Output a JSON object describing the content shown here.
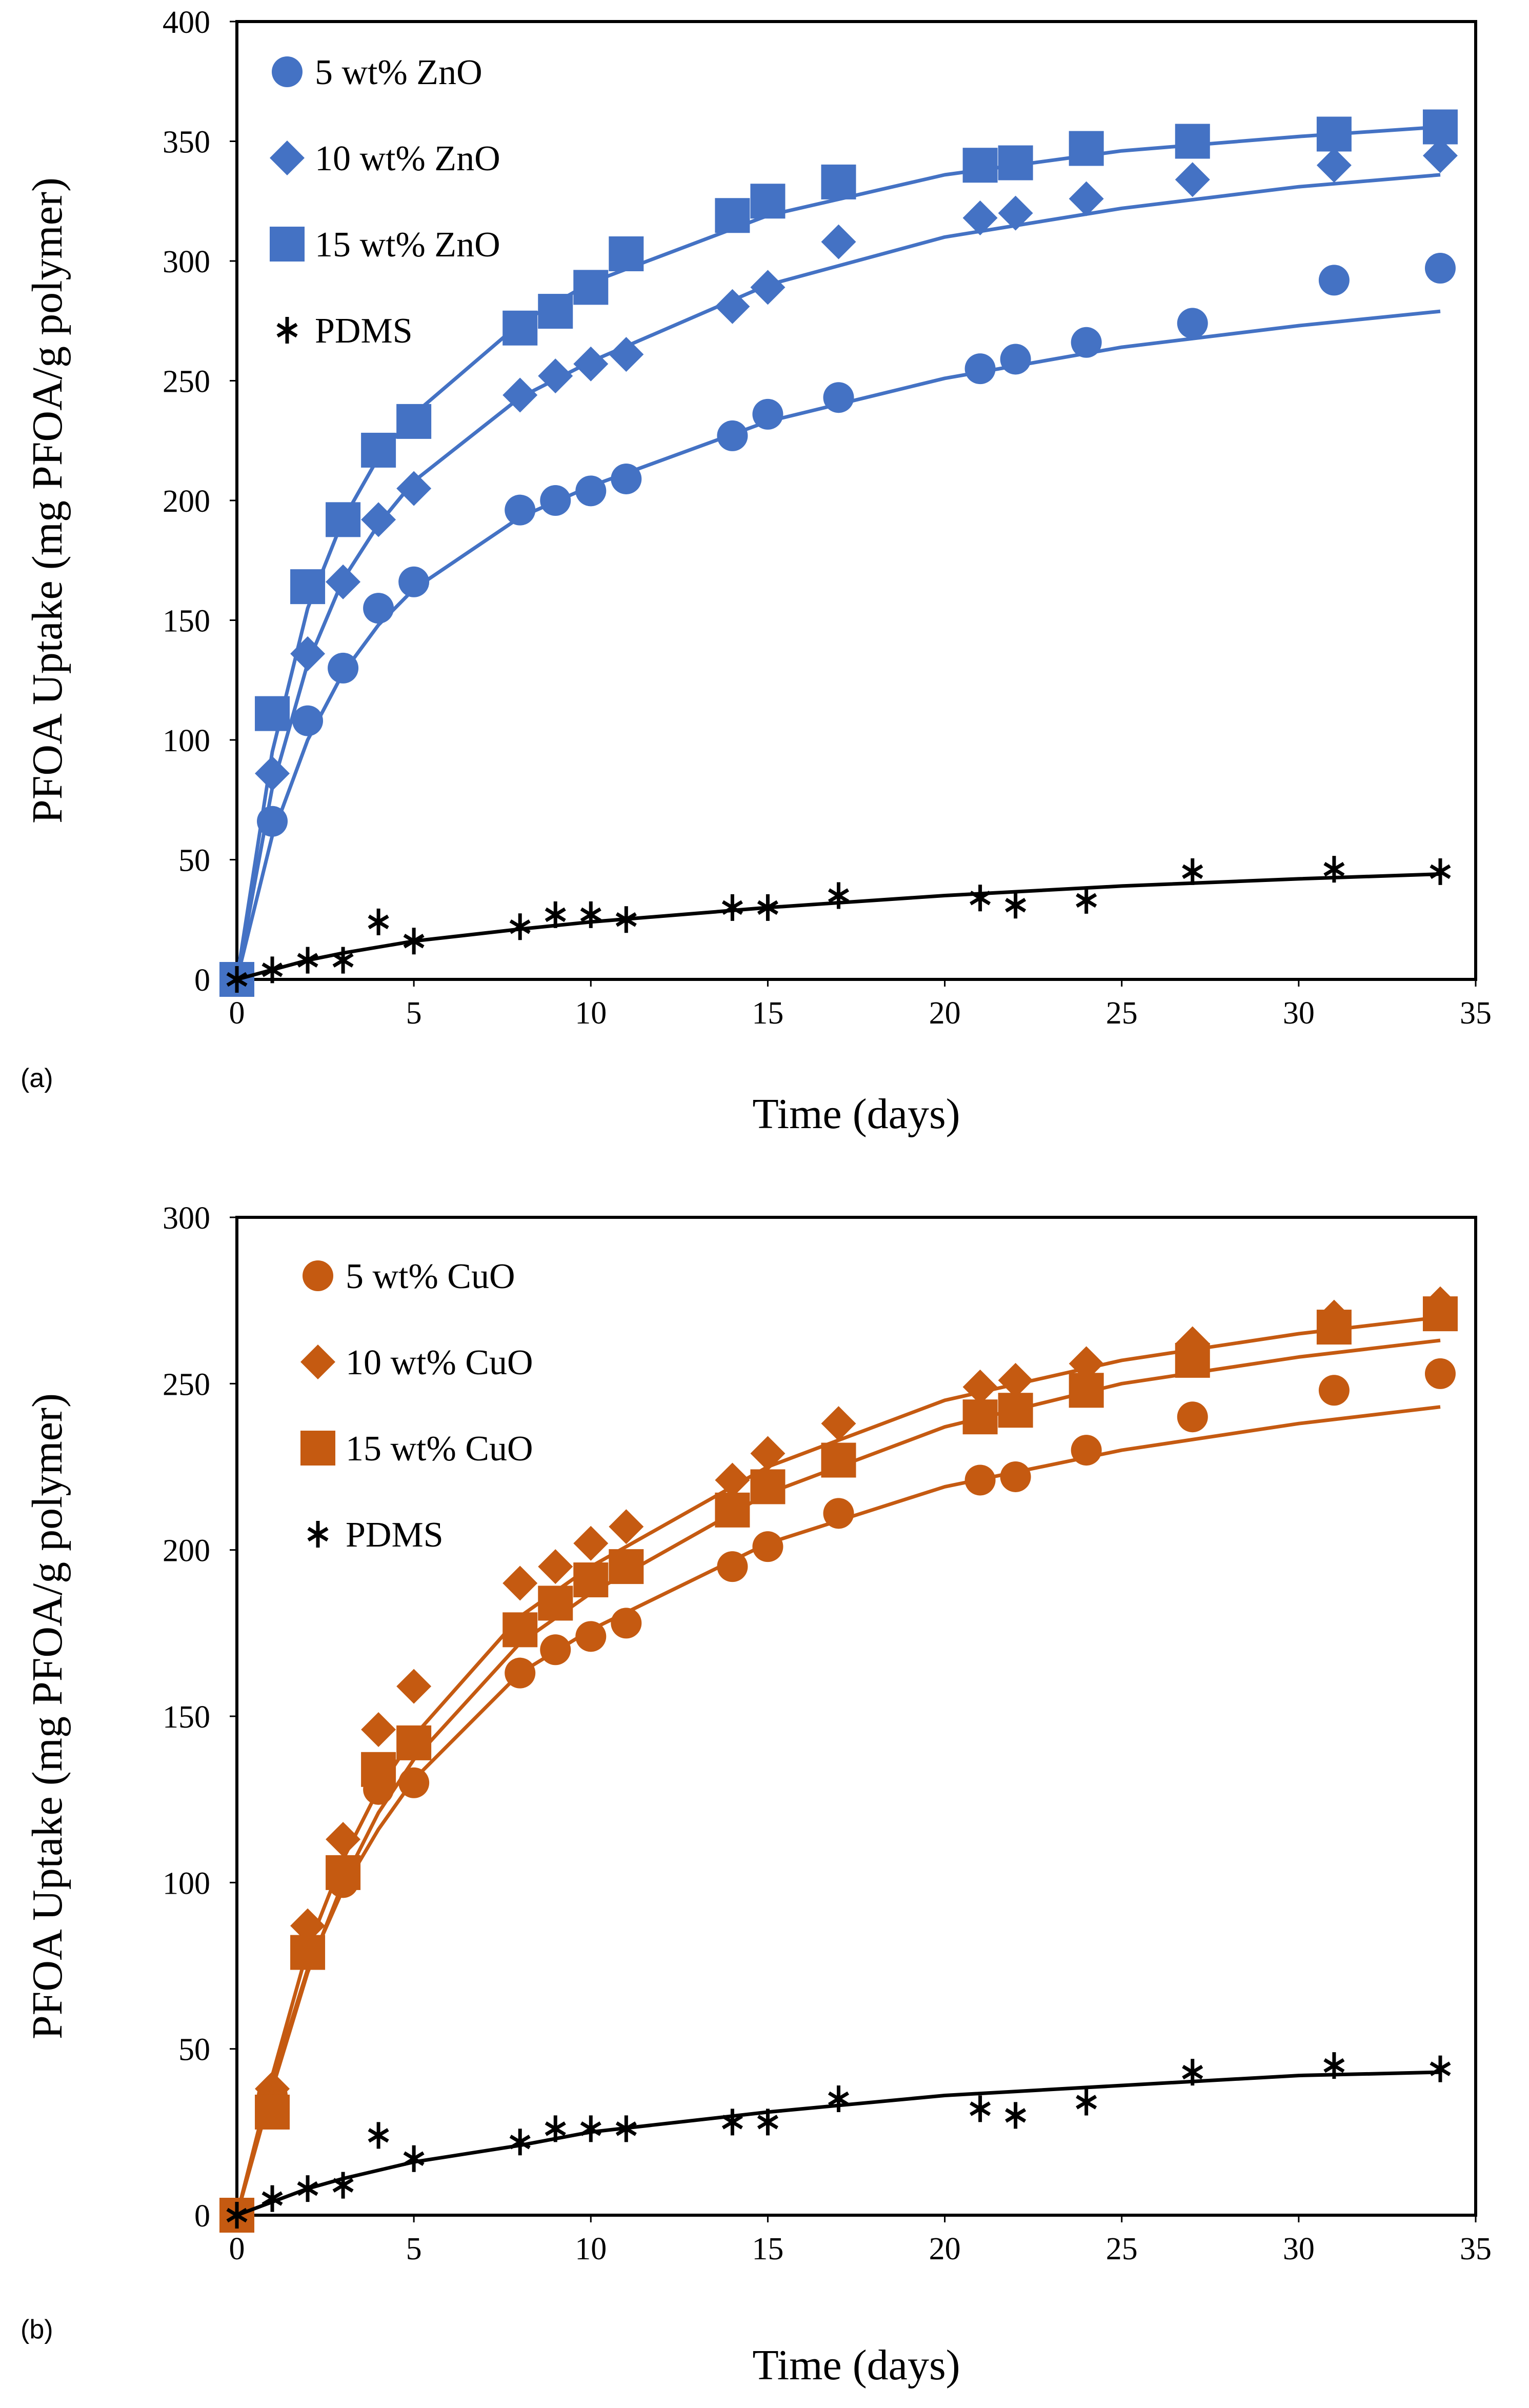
{
  "chart_data": [
    {
      "type": "scatter",
      "panel_label": "(a)",
      "title": "",
      "xlabel": "Time (days)",
      "ylabel": "PFOA Uptake (mg PFOA/g polymer)",
      "xlim": [
        0,
        35
      ],
      "ylim": [
        0,
        400
      ],
      "xticks": [
        0,
        5,
        10,
        15,
        20,
        25,
        30,
        35
      ],
      "yticks": [
        0,
        50,
        100,
        150,
        200,
        250,
        300,
        350,
        400
      ],
      "grid": false,
      "legend_position": "top-left",
      "series": [
        {
          "name": "5 wt% ZnO",
          "marker": "circle",
          "color": "#4472C4",
          "x": [
            0,
            1,
            2,
            3,
            4,
            5,
            8,
            9,
            10,
            11,
            14,
            15,
            17,
            21,
            22,
            24,
            27,
            31,
            34
          ],
          "y": [
            0,
            66,
            108,
            130,
            155,
            166,
            196,
            200,
            204,
            209,
            227,
            236,
            243,
            255,
            259,
            266,
            274,
            292,
            297
          ],
          "fit": {
            "x": [
              0,
              1,
              2,
              3,
              4,
              5,
              8,
              10,
              15,
              20,
              25,
              30,
              34
            ],
            "y": [
              0,
              60,
              100,
              128,
              148,
              163,
              193,
              206,
              233,
              251,
              264,
              273,
              279
            ]
          }
        },
        {
          "name": "10 wt% ZnO",
          "marker": "diamond",
          "color": "#4472C4",
          "x": [
            0,
            1,
            2,
            3,
            4,
            5,
            8,
            9,
            10,
            11,
            14,
            15,
            17,
            21,
            22,
            24,
            27,
            31,
            34
          ],
          "y": [
            0,
            86,
            136,
            166,
            192,
            205,
            244,
            252,
            257,
            261,
            281,
            289,
            308,
            318,
            320,
            326,
            334,
            340,
            344
          ],
          "fit": {
            "x": [
              0,
              1,
              2,
              3,
              4,
              5,
              8,
              10,
              15,
              20,
              25,
              30,
              34
            ],
            "y": [
              0,
              80,
              132,
              167,
              190,
              208,
              243,
              258,
              290,
              310,
              322,
              331,
              336
            ]
          }
        },
        {
          "name": "15 wt% ZnO",
          "marker": "square",
          "color": "#4472C4",
          "x": [
            0,
            1,
            2,
            3,
            4,
            5,
            8,
            9,
            10,
            11,
            14,
            15,
            17,
            21,
            22,
            24,
            27,
            31,
            34
          ],
          "y": [
            0,
            111,
            164,
            192,
            221,
            233,
            272,
            279,
            289,
            303,
            319,
            325,
            333,
            340,
            341,
            347,
            350,
            353,
            356
          ],
          "fit": {
            "x": [
              0,
              1,
              2,
              3,
              4,
              5,
              8,
              10,
              15,
              20,
              25,
              30,
              34
            ],
            "y": [
              0,
              95,
              155,
              192,
              218,
              236,
              274,
              291,
              319,
              336,
              346,
              352,
              356
            ]
          }
        },
        {
          "name": "PDMS",
          "marker": "asterisk",
          "color": "#000000",
          "x": [
            0,
            1,
            2,
            3,
            4,
            5,
            8,
            9,
            10,
            11,
            14,
            15,
            17,
            21,
            22,
            24,
            27,
            31,
            34
          ],
          "y": [
            0,
            4,
            8,
            8,
            24,
            16,
            22,
            27,
            27,
            25,
            30,
            30,
            35,
            34,
            31,
            33,
            45,
            46,
            45
          ],
          "fit": {
            "x": [
              0,
              1,
              2,
              3,
              5,
              8,
              10,
              15,
              20,
              25,
              30,
              34
            ],
            "y": [
              0,
              4,
              8,
              11,
              16,
              21,
              24,
              30,
              35,
              39,
              42,
              44
            ]
          }
        }
      ]
    },
    {
      "type": "scatter",
      "panel_label": "(b)",
      "title": "",
      "xlabel": "Time (days)",
      "ylabel": "PFOA Uptake (mg PFOA/g polymer)",
      "xlim": [
        0,
        35
      ],
      "ylim": [
        0,
        300
      ],
      "xticks": [
        0,
        5,
        10,
        15,
        20,
        25,
        30,
        35
      ],
      "yticks": [
        0,
        50,
        100,
        150,
        200,
        250,
        300
      ],
      "grid": false,
      "legend_position": "top-left",
      "series": [
        {
          "name": "5 wt% CuO",
          "marker": "circle",
          "color": "#C55A11",
          "x": [
            0,
            1,
            2,
            3,
            4,
            5,
            8,
            9,
            10,
            11,
            14,
            15,
            17,
            21,
            22,
            24,
            27,
            31,
            34
          ],
          "y": [
            0,
            36,
            80,
            100,
            128,
            130,
            163,
            170,
            174,
            178,
            195,
            201,
            211,
            221,
            222,
            230,
            240,
            248,
            253
          ],
          "fit": {
            "x": [
              0,
              1,
              2,
              3,
              4,
              5,
              8,
              10,
              15,
              20,
              25,
              30,
              34
            ],
            "y": [
              0,
              40,
              74,
              98,
              116,
              131,
              163,
              176,
              202,
              219,
              230,
              238,
              243
            ]
          }
        },
        {
          "name": "10 wt% CuO",
          "marker": "diamond",
          "color": "#C55A11",
          "x": [
            0,
            1,
            2,
            3,
            4,
            5,
            8,
            9,
            10,
            11,
            14,
            15,
            17,
            21,
            22,
            24,
            27,
            31,
            34
          ],
          "y": [
            0,
            38,
            87,
            113,
            146,
            159,
            190,
            195,
            202,
            207,
            221,
            229,
            238,
            249,
            251,
            256,
            262,
            270,
            274
          ],
          "fit": {
            "x": [
              0,
              1,
              2,
              3,
              4,
              5,
              8,
              10,
              15,
              20,
              25,
              30,
              34
            ],
            "y": [
              0,
              42,
              80,
              107,
              128,
              144,
              180,
              195,
              225,
              245,
              257,
              265,
              270
            ]
          }
        },
        {
          "name": "15 wt% CuO",
          "marker": "square",
          "color": "#C55A11",
          "x": [
            0,
            1,
            2,
            3,
            4,
            5,
            8,
            9,
            10,
            11,
            14,
            15,
            17,
            21,
            22,
            24,
            27,
            31,
            34
          ],
          "y": [
            0,
            31,
            79,
            103,
            134,
            142,
            176,
            184,
            191,
            195,
            212,
            219,
            227,
            240,
            242,
            248,
            257,
            267,
            271
          ],
          "fit": {
            "x": [
              0,
              1,
              2,
              3,
              4,
              5,
              8,
              10,
              15,
              20,
              25,
              30,
              34
            ],
            "y": [
              0,
              38,
              73,
              100,
              121,
              137,
              172,
              187,
              217,
              237,
              250,
              258,
              263
            ]
          }
        },
        {
          "name": "PDMS",
          "marker": "asterisk",
          "color": "#000000",
          "x": [
            0,
            1,
            2,
            3,
            4,
            5,
            8,
            9,
            10,
            11,
            14,
            15,
            17,
            21,
            22,
            24,
            27,
            31,
            34
          ],
          "y": [
            0,
            5,
            8,
            9,
            24,
            17,
            22,
            26,
            26,
            26,
            28,
            28,
            35,
            32,
            30,
            34,
            43,
            45,
            44
          ],
          "fit": {
            "x": [
              0,
              1,
              2,
              3,
              5,
              8,
              10,
              15,
              20,
              25,
              30,
              34
            ],
            "y": [
              0,
              4,
              8,
              11,
              16,
              21,
              25,
              31,
              36,
              39,
              42,
              43
            ]
          }
        }
      ]
    }
  ]
}
